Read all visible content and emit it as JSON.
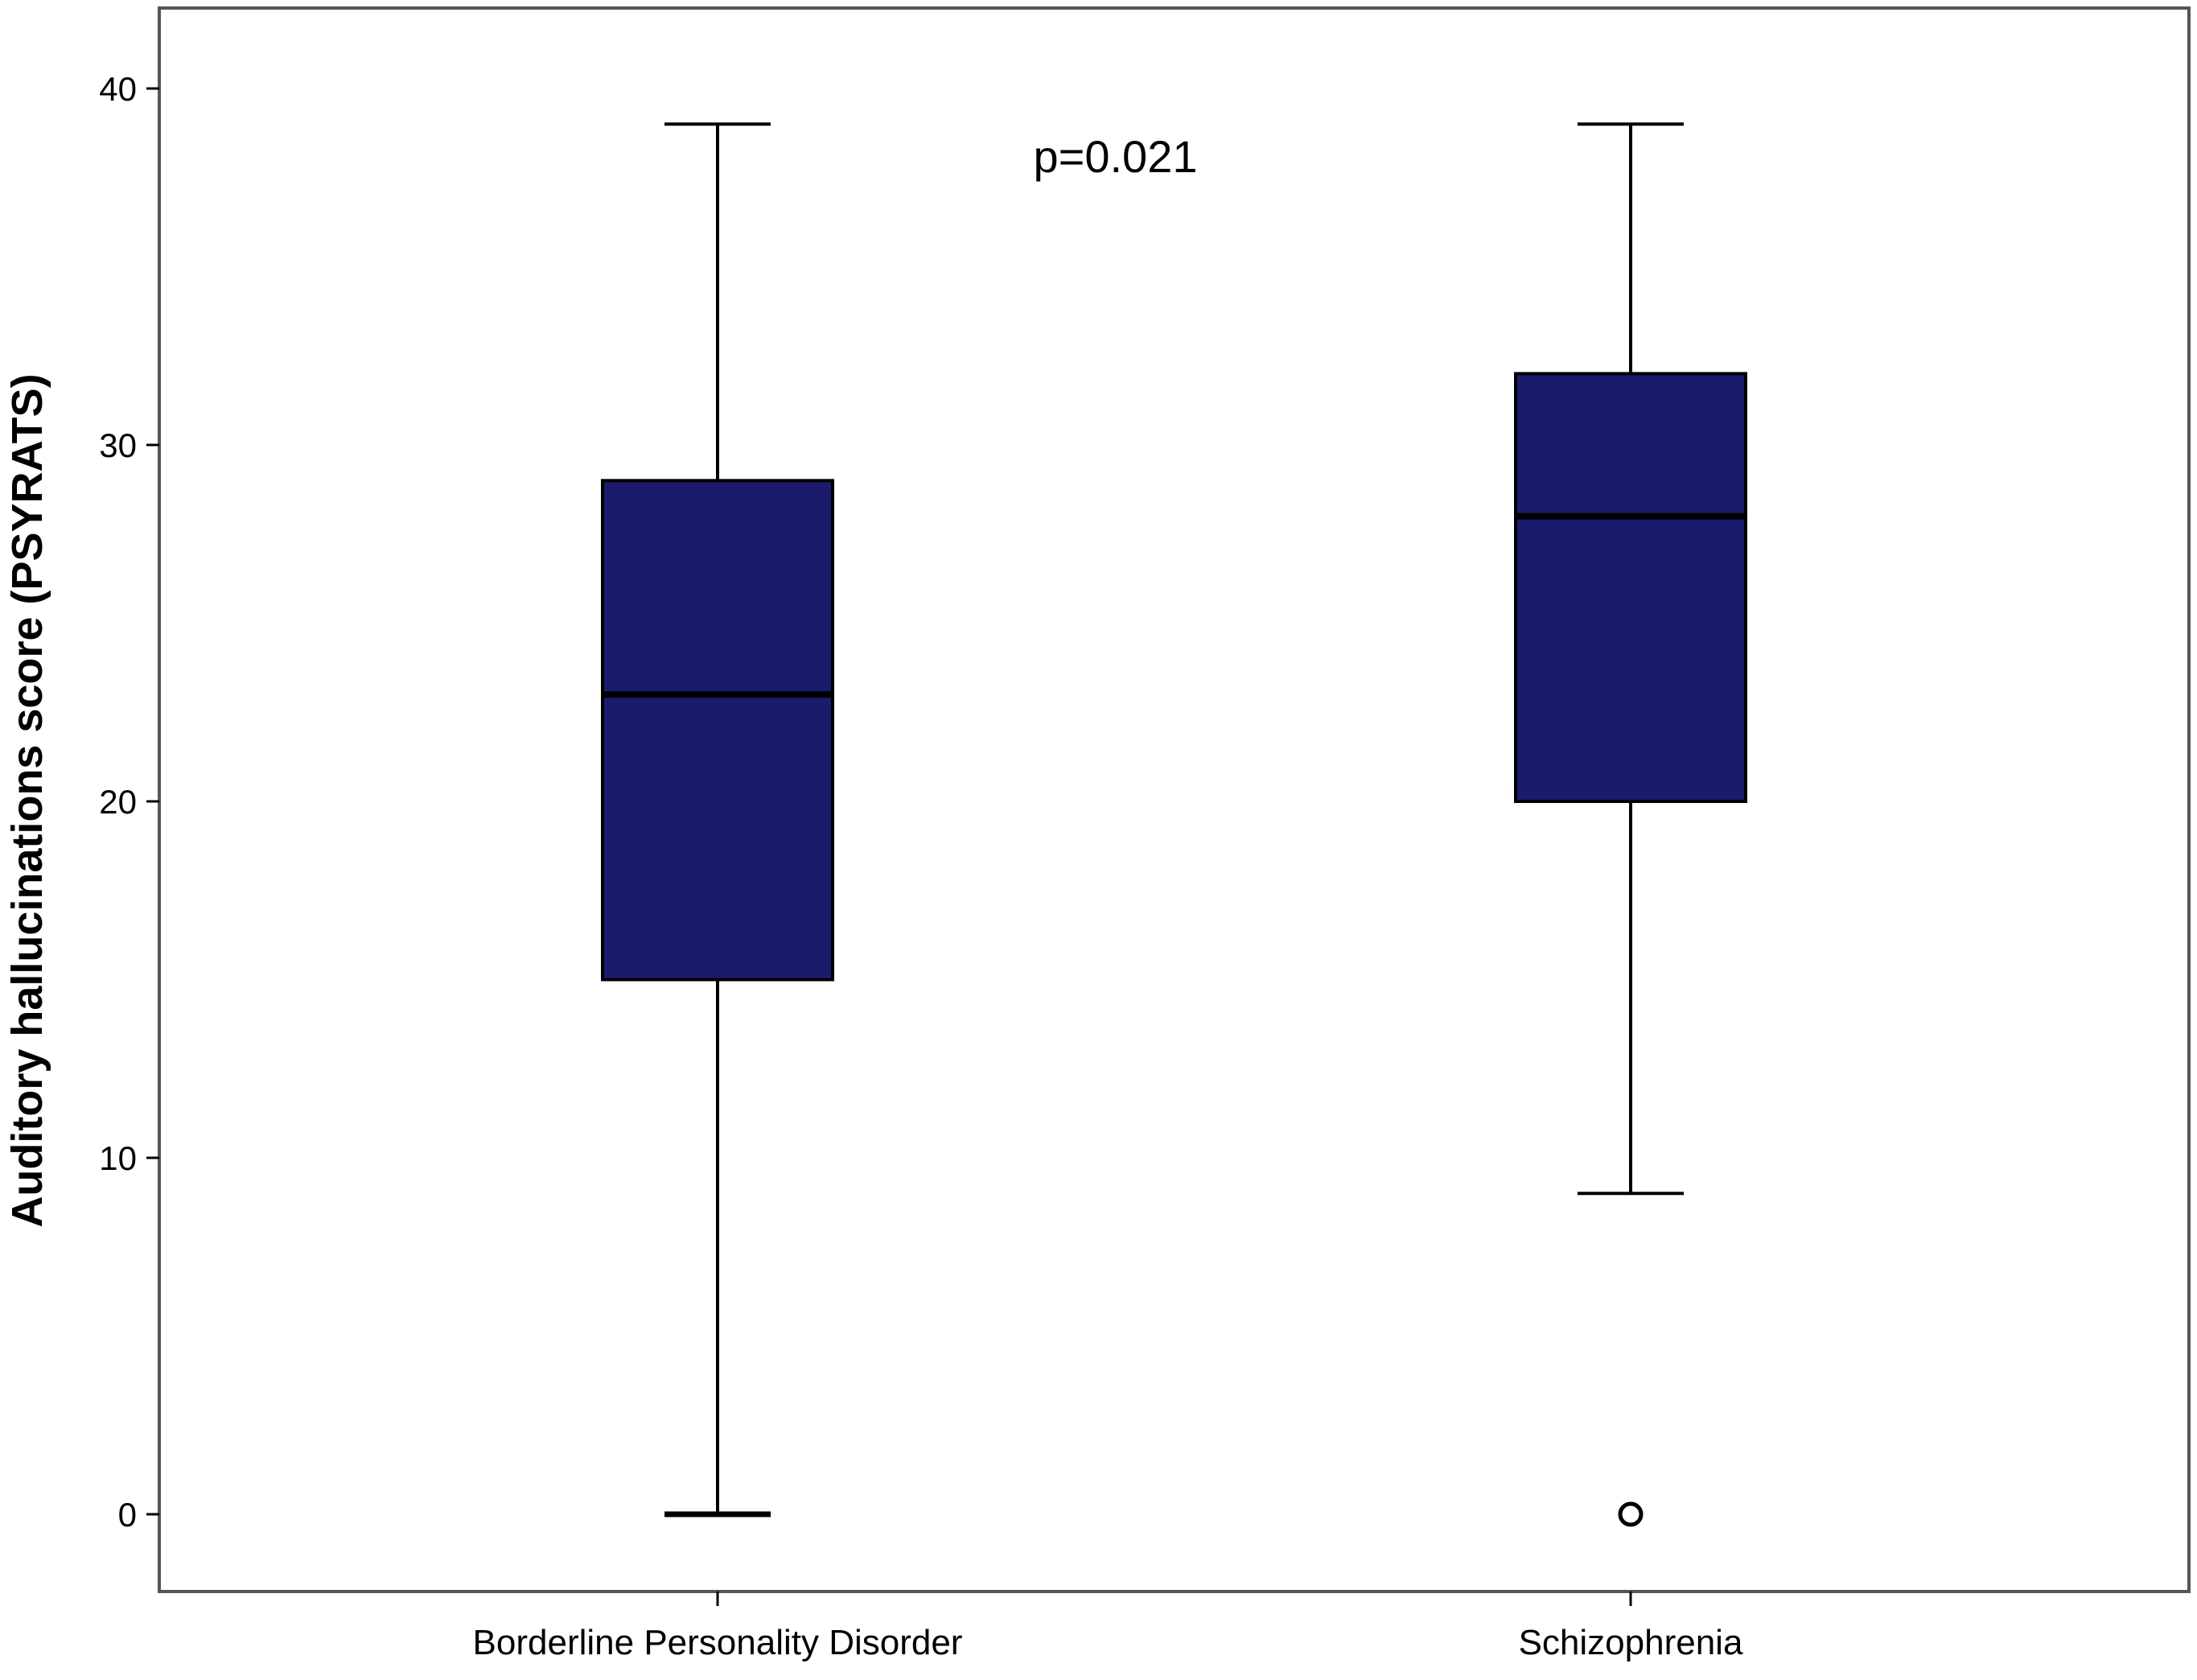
{
  "chart_data": {
    "type": "box",
    "title": "",
    "xlabel": "",
    "ylabel": "Auditory hallucinations score (PSYRATS)",
    "ylim": [
      -2.2,
      42.3
    ],
    "yticks": [
      0,
      10,
      20,
      30,
      40
    ],
    "grid": false,
    "categories": [
      "Borderline Personality Disorder",
      "Schizophrenia"
    ],
    "boxes": [
      {
        "category": "Borderline Personality Disorder",
        "whisker_low": 0,
        "q1": 15,
        "median": 23,
        "q3": 29,
        "whisker_high": 39,
        "outliers": []
      },
      {
        "category": "Schizophrenia",
        "whisker_low": 9,
        "q1": 20,
        "median": 28,
        "q3": 32,
        "whisker_high": 39,
        "outliers": [
          0
        ]
      }
    ],
    "annotations": [
      {
        "text": "p=0.021",
        "x_between": [
          0,
          1
        ],
        "y": 38.1
      }
    ],
    "colors": {
      "box_fill": "#1b1b6e",
      "box_edge": "#000000",
      "frame": "#555555"
    }
  }
}
